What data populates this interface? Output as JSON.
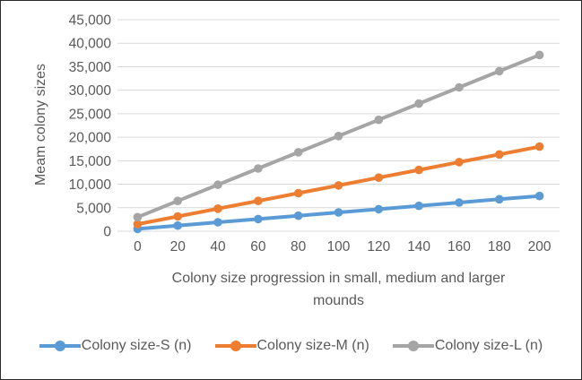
{
  "chart_data": {
    "type": "line",
    "x": [
      0,
      20,
      40,
      60,
      80,
      100,
      120,
      140,
      160,
      180,
      200
    ],
    "series": [
      {
        "name": "Colony size-S (n)",
        "color": "#5B9BD5",
        "values": [
          500,
          1200,
          1900,
          2600,
          3300,
          4000,
          4700,
          5400,
          6100,
          6800,
          7500
        ]
      },
      {
        "name": "Colony size-M (n)",
        "color": "#ED7D31",
        "values": [
          1500,
          3150,
          4800,
          6450,
          8100,
          9750,
          11400,
          13050,
          14700,
          16350,
          18000
        ]
      },
      {
        "name": "Colony size-L (n)",
        "color": "#A5A5A5",
        "values": [
          3000,
          6450,
          9900,
          13350,
          16800,
          20250,
          23700,
          27150,
          30600,
          34050,
          37500
        ]
      }
    ],
    "title": "",
    "ylabel": "Meam colony sizes",
    "xlabel_line1": "Colony size progression in small, medium and larger",
    "xlabel_line2": "mounds",
    "ylim": [
      0,
      45000
    ],
    "ytick_step": 5000,
    "yticks": [
      "45,000",
      "40,000",
      "35,000",
      "30,000",
      "25,000",
      "20,000",
      "15,000",
      "10,000",
      "5,000",
      "0"
    ],
    "grid": true,
    "legend_position": "bottom",
    "colors": {
      "gridline": "#D9D9D9",
      "axis_text": "#595959"
    }
  }
}
